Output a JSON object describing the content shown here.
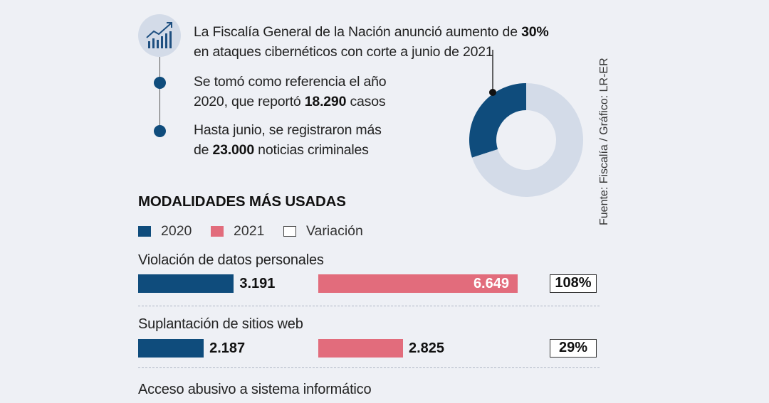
{
  "facts": [
    {
      "pre": "La Fiscalía General de la Nación anunció aumento de ",
      "bold": "30%",
      "post": "",
      "line2": "en ataques cibernéticos con corte a junio de 2021"
    },
    {
      "line1": "Se tomó como referencia el año",
      "pre": "2020, que reportó ",
      "bold": "18.290",
      "post": " casos"
    },
    {
      "line1": "Hasta junio, se registraron más",
      "pre": "de ",
      "bold": "23.000",
      "post": " noticias criminales"
    }
  ],
  "source": "Fuente: Fiscalía / Gráfico: LR-ER",
  "colors": {
    "c2020": "#0f4c7c",
    "c2021": "#e26c7c",
    "donut_rest": "#d3dbe8",
    "background": "#eef0f5"
  },
  "icons": {
    "trend": "chart-growth-icon"
  },
  "chart_data": [
    {
      "type": "pie",
      "slices": [
        {
          "value": 30,
          "color": "#0f4c7c"
        },
        {
          "value": 70,
          "color": "#d3dbe8"
        }
      ],
      "hole": true
    },
    {
      "type": "bar",
      "title": "MODALIDADES MÁS USADAS",
      "legend": [
        "2020",
        "2021",
        "Variación"
      ],
      "categories": [
        "Violación de datos personales",
        "Suplantación de sitios web",
        "Acceso abusivo a sistema informático"
      ],
      "series": [
        {
          "name": "2020",
          "values": [
            3191,
            2187,
            null
          ],
          "labels": [
            "3.191",
            "2.187",
            ""
          ]
        },
        {
          "name": "2021",
          "values": [
            6649,
            2825,
            null
          ],
          "labels": [
            "6.649",
            "2.825",
            ""
          ]
        }
      ],
      "variation": [
        "108%",
        "29%",
        ""
      ]
    }
  ]
}
